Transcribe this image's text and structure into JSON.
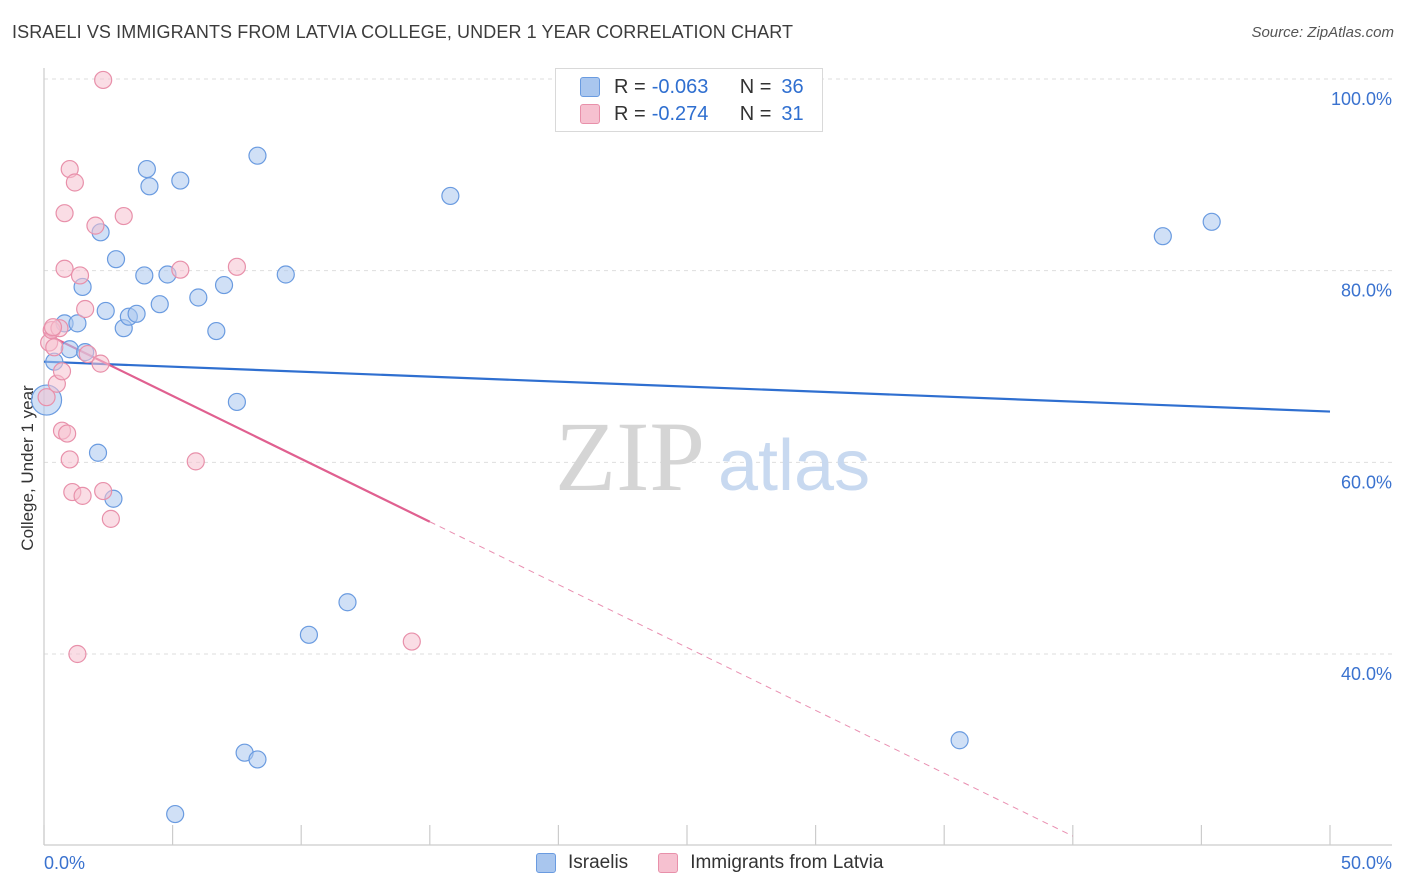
{
  "title": "ISRAELI VS IMMIGRANTS FROM LATVIA COLLEGE, UNDER 1 YEAR CORRELATION CHART",
  "source": "Source: ZipAtlas.com",
  "watermark": {
    "zip": "ZIP",
    "atlas": "atlas"
  },
  "legend": {
    "r_label": "R =",
    "n_label": "N =",
    "rows": [
      {
        "r": "-0.063",
        "n": "36",
        "color": "#a9c6ee",
        "border": "#6a9be0"
      },
      {
        "r": "-0.274",
        "n": "31",
        "color": "#f6c1d0",
        "border": "#e890aa"
      }
    ]
  },
  "bottom_legend": [
    "Israelis",
    "Immigrants from Latvia"
  ],
  "chart_data": {
    "type": "scatter",
    "title": "ISRAELI VS IMMIGRANTS FROM LATVIA COLLEGE, UNDER 1 YEAR CORRELATION CHART",
    "xlabel": "",
    "ylabel": "College, Under 1 year",
    "xlim": [
      0,
      50
    ],
    "ylim": [
      20,
      102
    ],
    "x_tick_labels": [
      "0.0%",
      "50.0%"
    ],
    "y_ticks": [
      40,
      60,
      80,
      100
    ],
    "y_tick_labels": [
      "40.0%",
      "60.0%",
      "80.0%",
      "100.0%"
    ],
    "grid": true,
    "series": [
      {
        "name": "Israelis",
        "color": "#a9c6ee",
        "stroke": "#6a9be0",
        "trend": {
          "x": [
            0,
            50
          ],
          "y": [
            70.5,
            65.3
          ],
          "color": "#2f6fd0"
        },
        "points": [
          [
            0.1,
            66.5
          ],
          [
            0.4,
            70.5
          ],
          [
            0.8,
            74.5
          ],
          [
            1.0,
            71.8
          ],
          [
            1.3,
            74.5
          ],
          [
            1.6,
            71.5
          ],
          [
            1.5,
            78.3
          ],
          [
            2.1,
            61.0
          ],
          [
            2.2,
            84.0
          ],
          [
            2.4,
            75.8
          ],
          [
            2.7,
            56.2
          ],
          [
            2.8,
            81.2
          ],
          [
            3.1,
            74.0
          ],
          [
            3.3,
            75.2
          ],
          [
            3.6,
            75.5
          ],
          [
            3.9,
            79.5
          ],
          [
            4.0,
            90.6
          ],
          [
            4.1,
            88.8
          ],
          [
            4.5,
            76.5
          ],
          [
            5.3,
            89.4
          ],
          [
            4.8,
            79.6
          ],
          [
            6.0,
            77.2
          ],
          [
            6.7,
            73.7
          ],
          [
            7.0,
            78.5
          ],
          [
            7.5,
            66.3
          ],
          [
            8.3,
            92.0
          ],
          [
            9.4,
            79.6
          ],
          [
            10.3,
            42.0
          ],
          [
            11.8,
            45.4
          ],
          [
            7.8,
            29.7
          ],
          [
            8.3,
            29.0
          ],
          [
            5.1,
            23.3
          ],
          [
            15.8,
            87.8
          ],
          [
            35.6,
            31.0
          ],
          [
            43.5,
            83.6
          ],
          [
            45.4,
            85.1
          ]
        ]
      },
      {
        "name": "Immigrants from Latvia",
        "color": "#f6c1d0",
        "stroke": "#e890aa",
        "trend": {
          "x": [
            0,
            15
          ],
          "y": [
            73.5,
            53.8
          ],
          "color": "#e06090",
          "dashed_to": [
            40,
            21.0
          ]
        },
        "points": [
          [
            0.1,
            66.8
          ],
          [
            0.2,
            72.5
          ],
          [
            0.3,
            73.8
          ],
          [
            0.4,
            72.0
          ],
          [
            0.5,
            68.2
          ],
          [
            0.6,
            74.0
          ],
          [
            0.7,
            69.5
          ],
          [
            0.7,
            63.3
          ],
          [
            0.8,
            86.0
          ],
          [
            0.8,
            80.2
          ],
          [
            0.9,
            63.0
          ],
          [
            1.0,
            60.3
          ],
          [
            1.0,
            90.6
          ],
          [
            1.1,
            56.9
          ],
          [
            1.2,
            89.2
          ],
          [
            1.3,
            40.0
          ],
          [
            1.4,
            79.5
          ],
          [
            1.5,
            56.5
          ],
          [
            1.6,
            76.0
          ],
          [
            1.7,
            71.3
          ],
          [
            2.0,
            84.7
          ],
          [
            2.2,
            70.3
          ],
          [
            2.3,
            57.0
          ],
          [
            2.6,
            54.1
          ],
          [
            3.1,
            85.7
          ],
          [
            2.3,
            99.9
          ],
          [
            5.3,
            80.1
          ],
          [
            5.9,
            60.1
          ],
          [
            7.5,
            80.4
          ],
          [
            14.3,
            41.3
          ],
          [
            0.35,
            74.1
          ]
        ]
      }
    ]
  }
}
